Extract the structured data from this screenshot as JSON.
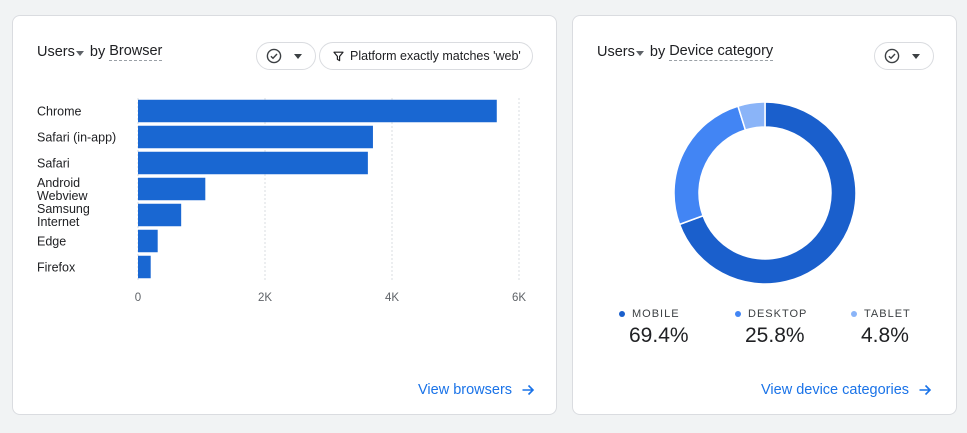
{
  "browser_card": {
    "metric": "Users",
    "by": "by",
    "dimension": "Browser",
    "filter": "Platform exactly matches 'web'",
    "view_link": "View browsers"
  },
  "device_card": {
    "metric": "Users",
    "by": "by",
    "dimension": "Device category",
    "view_link": "View device categories"
  },
  "colors": {
    "bar": "#1967d2",
    "mobile": "#1a5fcc",
    "desktop": "#4285f4",
    "tablet": "#8ab4f8",
    "link": "#1a73e8"
  },
  "chart_data": [
    {
      "type": "bar",
      "orientation": "horizontal",
      "categories": [
        [
          "Chrome"
        ],
        [
          "Safari (in-app)"
        ],
        [
          "Safari"
        ],
        [
          "Android",
          "Webview"
        ],
        [
          "Samsung",
          "Internet"
        ],
        [
          "Edge"
        ],
        [
          "Firefox"
        ]
      ],
      "values": [
        5650,
        3700,
        3620,
        1060,
        680,
        310,
        200
      ],
      "xlim": [
        0,
        6000
      ],
      "xticks": [
        "0",
        "2K",
        "4K",
        "6K"
      ],
      "xtick_values": [
        0,
        2000,
        4000,
        6000
      ]
    },
    {
      "type": "pie",
      "donut": true,
      "slices": [
        {
          "key": "mobile",
          "label": "MOBILE",
          "value": 69.4,
          "display": "69.4%"
        },
        {
          "key": "desktop",
          "label": "DESKTOP",
          "value": 25.8,
          "display": "25.8%"
        },
        {
          "key": "tablet",
          "label": "TABLET",
          "value": 4.8,
          "display": "4.8%"
        }
      ]
    }
  ]
}
